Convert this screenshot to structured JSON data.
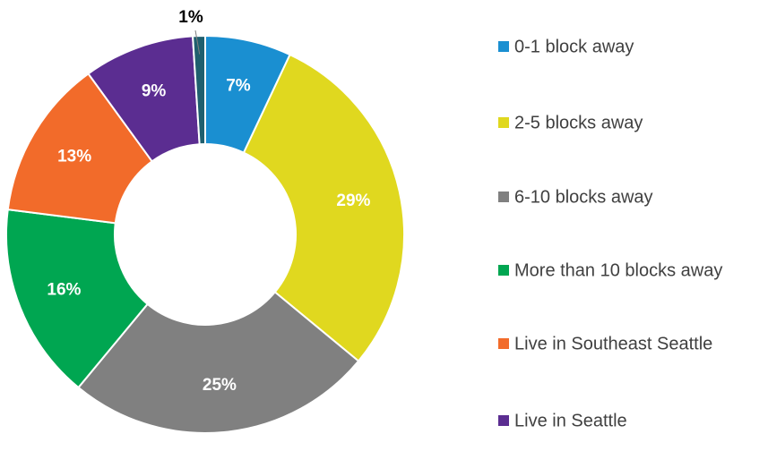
{
  "chart_data": {
    "type": "donut",
    "categories": [
      "0-1 block away",
      "2-5 blocks away",
      "6-10 blocks away",
      "More than 10 blocks away",
      "Live in Southeast Seattle",
      "Live in Seattle",
      null
    ],
    "values": [
      7,
      29,
      25,
      16,
      13,
      9,
      1
    ],
    "value_labels": [
      "7%",
      "29%",
      "25%",
      "16%",
      "13%",
      "9%",
      "1%"
    ],
    "colors": [
      "#1a8fd1",
      "#e0d81f",
      "#808080",
      "#00a651",
      "#f26b2a",
      "#5b2d91",
      "#1f5f6e"
    ],
    "legend": "right"
  }
}
